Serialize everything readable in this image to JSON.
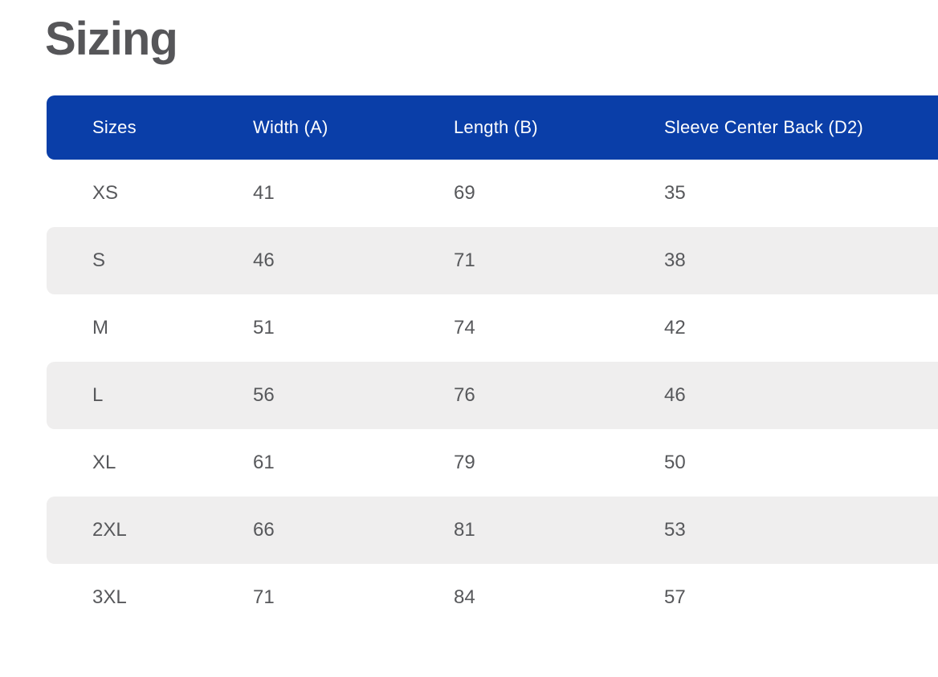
{
  "page": {
    "title": "Sizing"
  },
  "table": {
    "columns": [
      "Sizes",
      "Width (A)",
      "Length (B)",
      "Sleeve Center Back (D2)"
    ],
    "rows": [
      {
        "size": "XS",
        "width": "41",
        "length": "69",
        "sleeve": "35"
      },
      {
        "size": "S",
        "width": "46",
        "length": "71",
        "sleeve": "38"
      },
      {
        "size": "M",
        "width": "51",
        "length": "74",
        "sleeve": "42"
      },
      {
        "size": "L",
        "width": "56",
        "length": "76",
        "sleeve": "46"
      },
      {
        "size": "XL",
        "width": "61",
        "length": "79",
        "sleeve": "50"
      },
      {
        "size": "2XL",
        "width": "66",
        "length": "81",
        "sleeve": "53"
      },
      {
        "size": "3XL",
        "width": "71",
        "length": "84",
        "sleeve": "57"
      }
    ]
  },
  "colors": {
    "header_bg": "#0a3ea8",
    "header_text": "#fdfdfe",
    "row_alt_bg": "#efeeee",
    "cell_text": "#57585b",
    "title_text": "#565659"
  }
}
